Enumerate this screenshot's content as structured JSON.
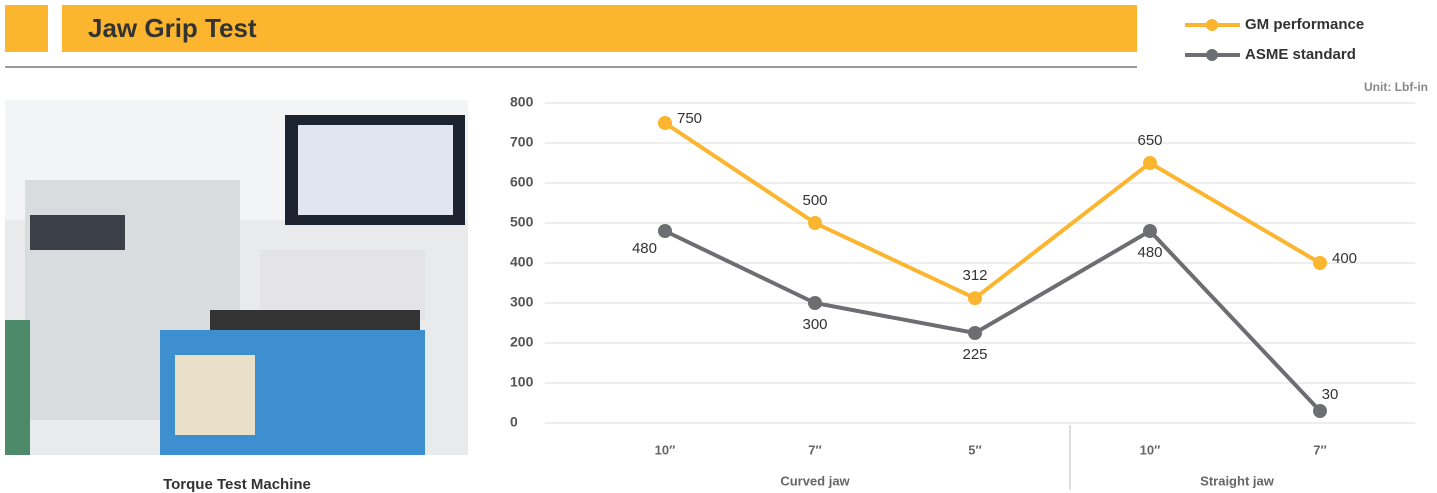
{
  "chart_data": {
    "type": "line",
    "title": "Jaw Grip Test",
    "unit": "Unit: Lbf-in",
    "image_caption": "Torque Test Machine",
    "categories": [
      "10″",
      "7″",
      "5″",
      "10″",
      "7″"
    ],
    "category_groups": [
      "Curved jaw",
      "Straight jaw"
    ],
    "series": [
      {
        "name": "GM performance",
        "color": "#fbb52f",
        "values": [
          750,
          500,
          312,
          650,
          400
        ]
      },
      {
        "name": "ASME standard",
        "color": "#6d6e71",
        "values": [
          480,
          300,
          225,
          480,
          30
        ]
      }
    ],
    "ylim": [
      0,
      800
    ],
    "yticks": [
      0,
      100,
      200,
      300,
      400,
      500,
      600,
      700,
      800
    ],
    "grid": true
  }
}
